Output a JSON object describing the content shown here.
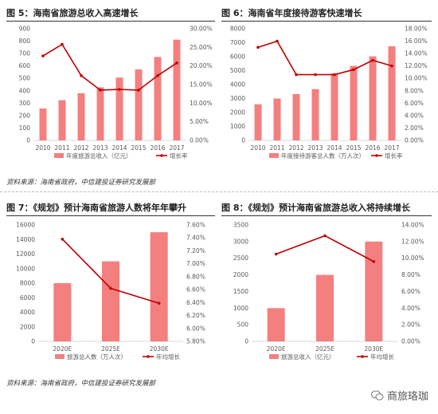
{
  "source_text": "资料来源：海南省政府，中信建投证券研究发展部",
  "watermark": "商旅珞珈",
  "colors": {
    "bar": "#f47f7f",
    "line": "#c00000",
    "axis": "#d9d9d9",
    "text": "#595959"
  },
  "chart_data": [
    {
      "type": "bar",
      "title": "图 5：海南省旅游总收入高速增长",
      "categories": [
        "2010",
        "2011",
        "2012",
        "2013",
        "2014",
        "2015",
        "2016",
        "2017"
      ],
      "series": [
        {
          "name": "年度旅游总收入（亿元）",
          "type": "bar",
          "axis": "left",
          "values": [
            257,
            324,
            380,
            428,
            506,
            572,
            672,
            812
          ]
        },
        {
          "name": "增长率",
          "type": "line",
          "axis": "right",
          "values": [
            22.7,
            25.8,
            17.4,
            13.5,
            13.7,
            13.5,
            17.4,
            20.8
          ]
        }
      ],
      "yleft": {
        "ticks": [
          "0",
          "100",
          "200",
          "300",
          "400",
          "500",
          "600",
          "700",
          "800",
          "900"
        ],
        "min": 0,
        "max": 900
      },
      "yright": {
        "ticks": [
          "0.00%",
          "5.00%",
          "10.00%",
          "15.00%",
          "20.00%",
          "25.00%",
          "30.00%"
        ],
        "min": 0,
        "max": 30
      }
    },
    {
      "type": "bar",
      "title": "图 6：海南省年度接待游客快速增长",
      "categories": [
        "2010",
        "2011",
        "2012",
        "2013",
        "2014",
        "2015",
        "2016",
        "2017"
      ],
      "series": [
        {
          "name": "年度接待游客总人数（万人次）",
          "type": "bar",
          "axis": "left",
          "values": [
            2587,
            3001,
            3320,
            3672,
            4789,
            5336,
            6023,
            6745
          ]
        },
        {
          "name": "增长率",
          "type": "line",
          "axis": "right",
          "values": [
            15.0,
            16.0,
            10.6,
            10.6,
            10.6,
            11.4,
            12.9,
            12.0
          ]
        }
      ],
      "yleft": {
        "ticks": [
          "0",
          "1000",
          "2000",
          "3000",
          "4000",
          "5000",
          "6000",
          "7000",
          "8000"
        ],
        "min": 0,
        "max": 8000
      },
      "yright": {
        "ticks": [
          "0.00%",
          "2.00%",
          "4.00%",
          "6.00%",
          "8.00%",
          "10.00%",
          "12.00%",
          "14.00%",
          "16.00%",
          "18.00%"
        ],
        "min": 0,
        "max": 18
      }
    },
    {
      "type": "bar",
      "title": "图 7：《规划》预计海南省旅游人数将年年攀升",
      "categories": [
        "2020E",
        "2025E",
        "2030E"
      ],
      "series": [
        {
          "name": "旅游总人数（万人次）",
          "type": "bar",
          "axis": "left",
          "values": [
            8000,
            11000,
            15000
          ]
        },
        {
          "name": "年均增长",
          "type": "line",
          "axis": "right",
          "values": [
            7.38,
            6.62,
            6.39
          ]
        }
      ],
      "yleft": {
        "ticks": [
          "0",
          "2000",
          "4000",
          "6000",
          "8000",
          "10000",
          "12000",
          "14000",
          "16000"
        ],
        "min": 0,
        "max": 16000
      },
      "yright": {
        "ticks": [
          "5.80%",
          "6.00%",
          "6.20%",
          "6.40%",
          "6.60%",
          "6.80%",
          "7.00%",
          "7.20%",
          "7.40%",
          "7.60%"
        ],
        "min": 5.8,
        "max": 7.6
      }
    },
    {
      "type": "bar",
      "title": "图 8：《规划》预计海南省旅游总收入将持续增长",
      "categories": [
        "2020E",
        "2025E",
        "2030E"
      ],
      "series": [
        {
          "name": "旅游总收入（亿元）",
          "type": "bar",
          "axis": "left",
          "values": [
            1000,
            2000,
            3000
          ]
        },
        {
          "name": "年均增长",
          "type": "line",
          "axis": "right",
          "values": [
            10.5,
            12.7,
            9.6
          ]
        }
      ],
      "yleft": {
        "ticks": [
          "0",
          "500",
          "1000",
          "1500",
          "2000",
          "2500",
          "3000",
          "3500"
        ],
        "min": 0,
        "max": 3500
      },
      "yright": {
        "ticks": [
          "0.00%",
          "2.00%",
          "4.00%",
          "6.00%",
          "8.00%",
          "10.00%",
          "12.00%",
          "14.00%"
        ],
        "min": 0,
        "max": 14
      }
    }
  ]
}
